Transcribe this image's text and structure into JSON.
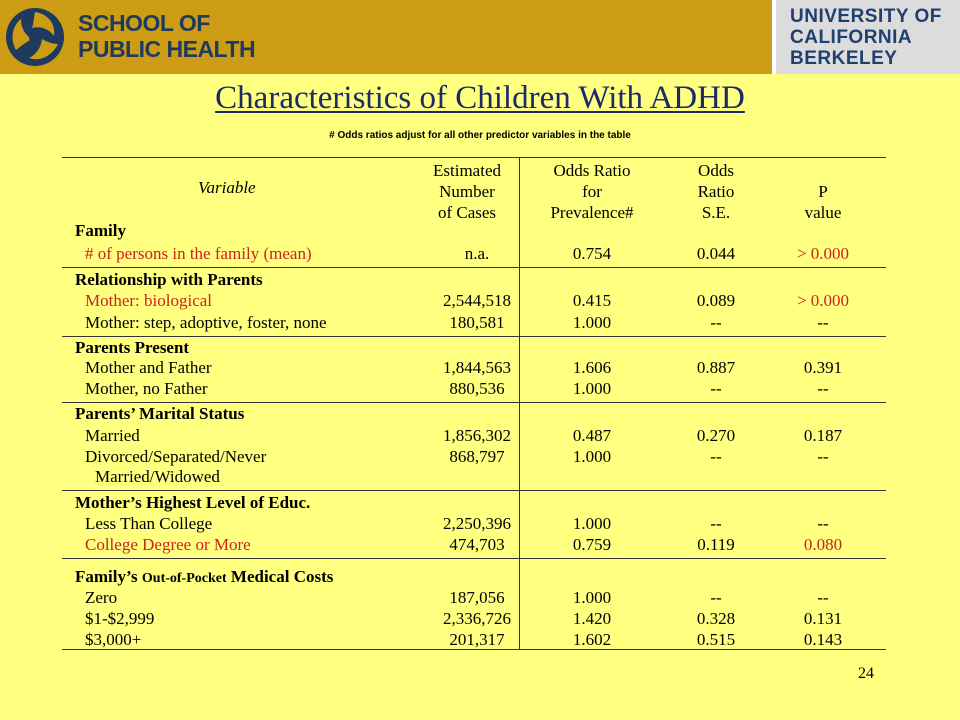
{
  "header": {
    "school_line1": "SCHOOL OF",
    "school_line2": "PUBLIC HEALTH",
    "university_line1": "UNIVERSITY OF",
    "university_line2": "CALIFORNIA",
    "university_line3": "BERKELEY"
  },
  "title": "Characteristics of Children With ADHD",
  "footnote": "# Odds ratios adjust for all other predictor variables in the table",
  "table": {
    "headers": {
      "variable": "Variable",
      "cases": [
        "Estimated",
        "Number",
        "of Cases"
      ],
      "odds": [
        "Odds Ratio",
        "for",
        "Prevalence#"
      ],
      "se": [
        "Odds",
        "Ratio",
        "S.E."
      ],
      "p": [
        "P",
        "value"
      ]
    },
    "sections": [
      {
        "title": "Family",
        "rows": [
          {
            "label": "# of persons in the family (mean)",
            "cases": "n.a.",
            "odds": "0.754",
            "se": "0.044",
            "p": "> 0.000",
            "highlight": true
          }
        ]
      },
      {
        "title": "Relationship with Parents",
        "rows": [
          {
            "label": "Mother: biological",
            "cases": "2,544,518",
            "odds": "0.415",
            "se": "0.089",
            "p": "> 0.000",
            "highlight": true
          },
          {
            "label": "Mother: step, adoptive, foster, none",
            "cases": "180,581",
            "odds": "1.000",
            "se": "--",
            "p": "--",
            "highlight": false
          }
        ]
      },
      {
        "title": "Parents Present",
        "rows": [
          {
            "label": "Mother and Father",
            "cases": "1,844,563",
            "odds": "1.606",
            "se": "0.887",
            "p": "0.391",
            "highlight": false
          },
          {
            "label": "Mother, no Father",
            "cases": "880,536",
            "odds": "1.000",
            "se": "--",
            "p": "--",
            "highlight": false
          }
        ]
      },
      {
        "title": "Parents’ Marital Status",
        "rows": [
          {
            "label": "Married",
            "cases": "1,856,302",
            "odds": "0.487",
            "se": "0.270",
            "p": "0.187",
            "highlight": false
          },
          {
            "label": "Divorced/Separated/Never",
            "label2": "Married/Widowed",
            "cases": "868,797",
            "odds": "1.000",
            "se": "--",
            "p": "--",
            "highlight": false
          }
        ]
      },
      {
        "title": "Mother’s Highest Level of Educ.",
        "rows": [
          {
            "label": "Less Than College",
            "cases": "2,250,396",
            "odds": "1.000",
            "se": "--",
            "p": "--",
            "highlight": false
          },
          {
            "label": "College Degree or More",
            "cases": "474,703",
            "odds": "0.759",
            "se": "0.119",
            "p": "0.080",
            "highlight": true
          }
        ]
      },
      {
        "title_part1": "Family’s",
        "title_part2": "Out-of-Pocket",
        "title_part3": "Medical Costs",
        "rows": [
          {
            "label": "Zero",
            "cases": "187,056",
            "odds": "1.000",
            "se": "--",
            "p": "--",
            "highlight": false
          },
          {
            "label": "$1-$2,999",
            "cases": "2,336,726",
            "odds": "1.420",
            "se": "0.328",
            "p": "0.131",
            "highlight": false
          },
          {
            "label": "$3,000+",
            "cases": "201,317",
            "odds": "1.602",
            "se": "0.515",
            "p": "0.143",
            "highlight": false
          }
        ]
      }
    ]
  },
  "page_number": "24"
}
